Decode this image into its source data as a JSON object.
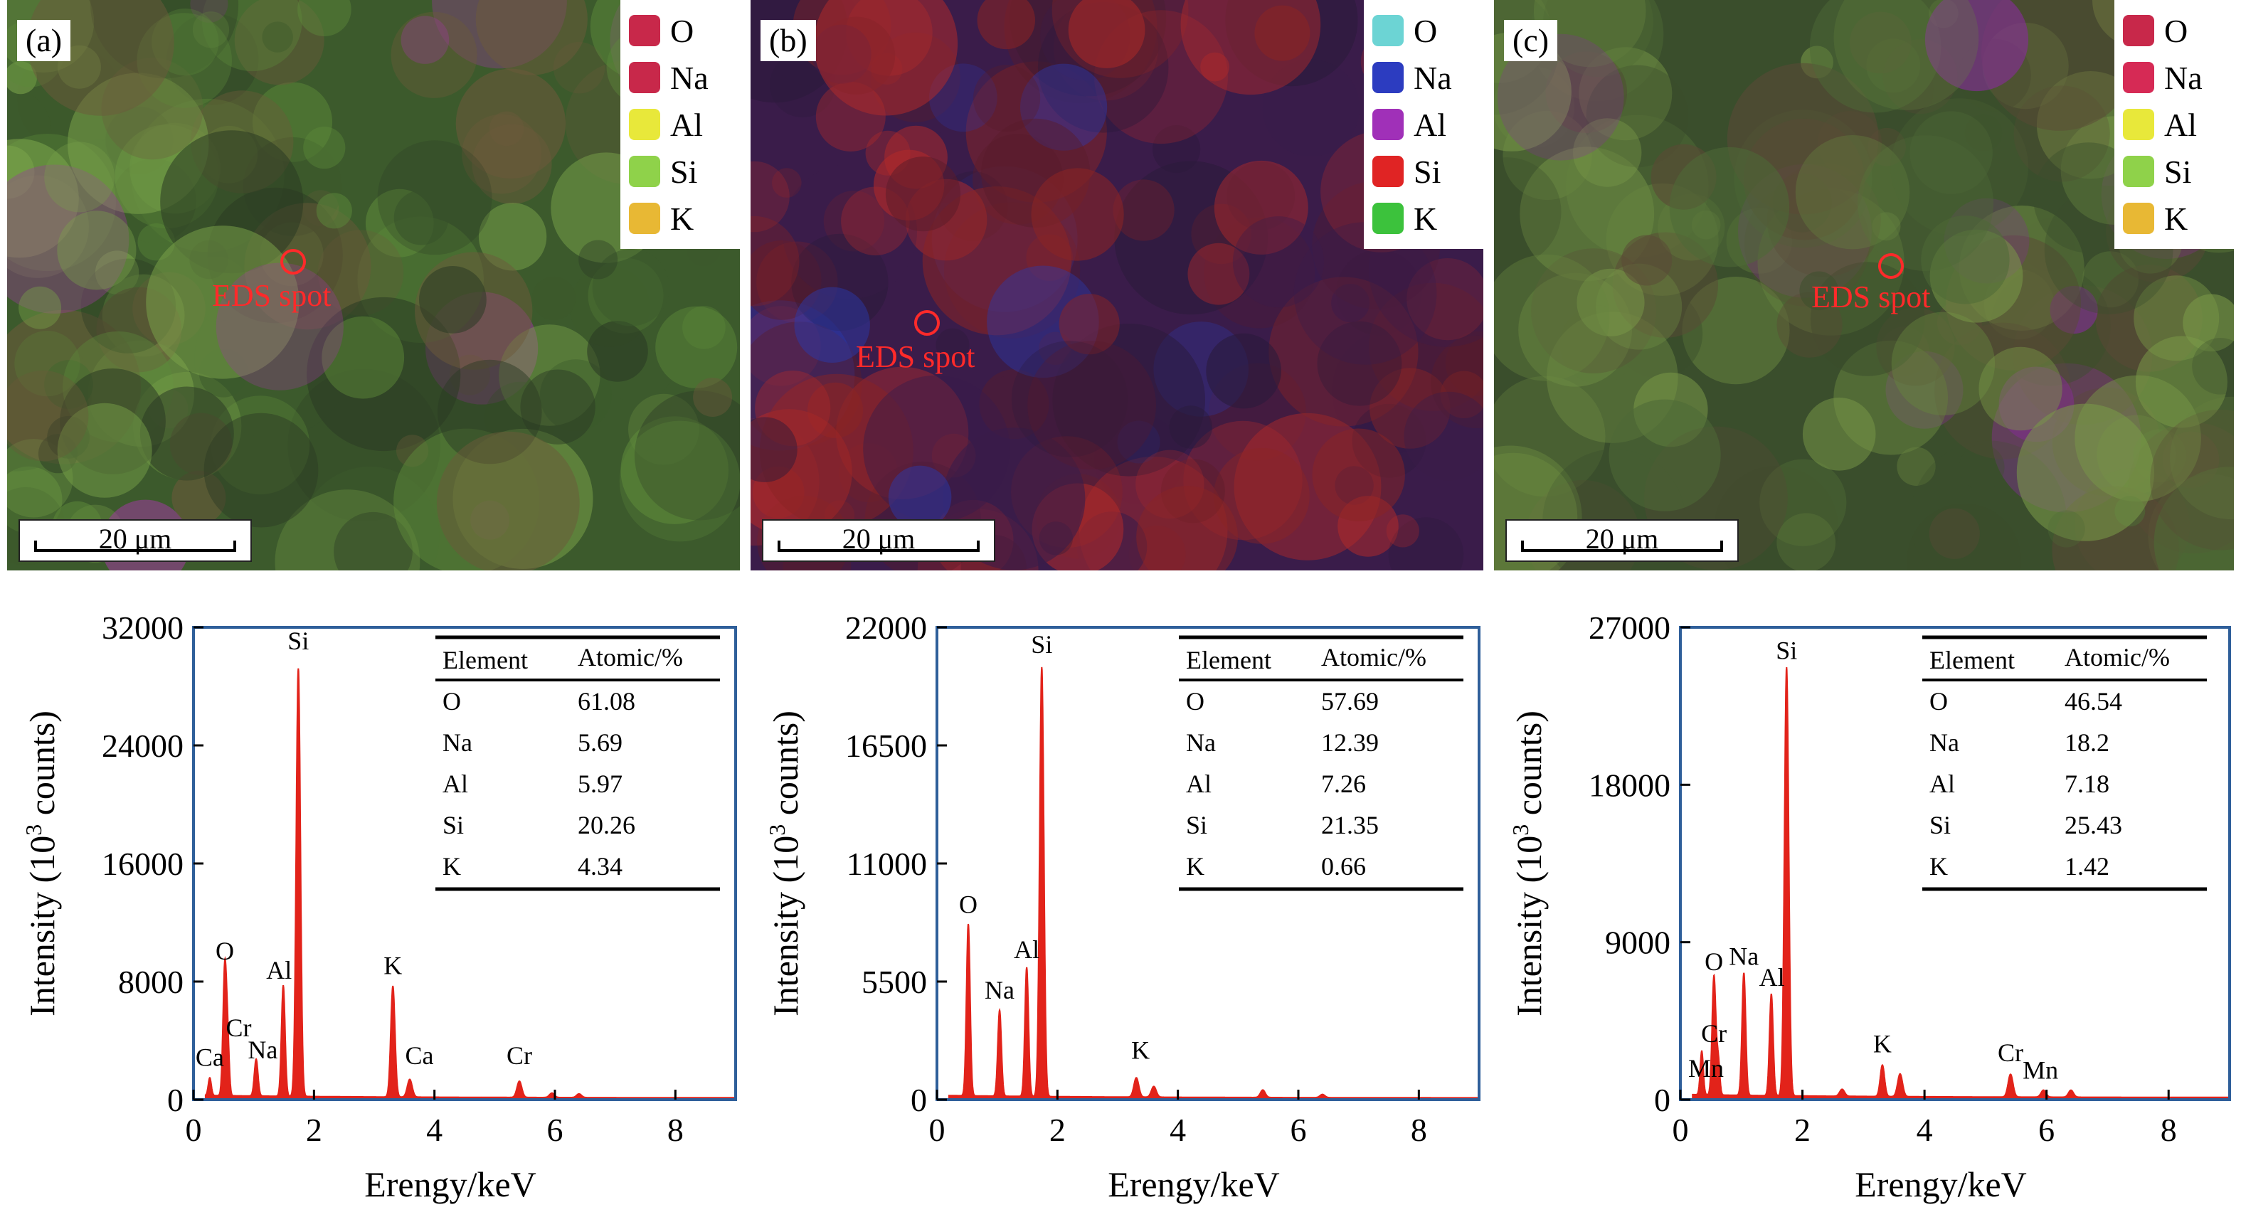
{
  "panels": [
    {
      "label": "(a)",
      "legend": [
        {
          "name": "O",
          "color": "#c8284a"
        },
        {
          "name": "Na",
          "color": "#c8284a"
        },
        {
          "name": "Al",
          "color": "#e8e83a"
        },
        {
          "name": "Si",
          "color": "#8fd24a"
        },
        {
          "name": "K",
          "color": "#e8b834"
        }
      ],
      "spot_label": "EDS spot",
      "scale_label": "20 μm",
      "map_colors": [
        "#5d8a3a",
        "#7aa34a",
        "#3c5a2c",
        "#2b3a24",
        "#6b5a3a",
        "#9b3a9a"
      ]
    },
    {
      "label": "(b)",
      "legend": [
        {
          "name": "O",
          "color": "#6cd4d4"
        },
        {
          "name": "Na",
          "color": "#2c3cc0"
        },
        {
          "name": "Al",
          "color": "#a030b8"
        },
        {
          "name": "Si",
          "color": "#e02424"
        },
        {
          "name": "K",
          "color": "#3cc23c"
        }
      ],
      "spot_label": "EDS spot",
      "scale_label": "20 μm",
      "map_colors": [
        "#5a1c2a",
        "#8a2424",
        "#3a1c4a",
        "#2a1a3a",
        "#b02a2a",
        "#2a3ab0"
      ]
    },
    {
      "label": "(c)",
      "legend": [
        {
          "name": "O",
          "color": "#c8284a"
        },
        {
          "name": "Na",
          "color": "#d62a55"
        },
        {
          "name": "Al",
          "color": "#e8e83a"
        },
        {
          "name": "Si",
          "color": "#8fd24a"
        },
        {
          "name": "K",
          "color": "#e8b834"
        }
      ],
      "spot_label": "EDS spot",
      "scale_label": "20 μm",
      "map_colors": [
        "#4e6a36",
        "#66843f",
        "#3a4e2c",
        "#5a4a36",
        "#7a9a48",
        "#8a2aa0"
      ]
    }
  ],
  "chart_data": [
    {
      "type": "line",
      "title": "",
      "xlabel": "Erengy/keV",
      "ylabel": "Intensity (10",
      "ylabel_sup": "3",
      "ylabel_tail": " counts)",
      "xlim": [
        0,
        9
      ],
      "ylim": [
        0,
        32000
      ],
      "xticks": [
        0,
        2,
        4,
        6,
        8
      ],
      "yticks": [
        0,
        8000,
        16000,
        24000,
        32000
      ],
      "color": "#e2231a",
      "peaks": [
        {
          "x": 0.27,
          "y": 1200,
          "w": 0.025
        },
        {
          "x": 0.52,
          "y": 8800,
          "w": 0.03
        },
        {
          "x": 0.57,
          "y": 3000,
          "w": 0.025
        },
        {
          "x": 1.04,
          "y": 2500,
          "w": 0.03
        },
        {
          "x": 1.49,
          "y": 7500,
          "w": 0.03
        },
        {
          "x": 1.74,
          "y": 29000,
          "w": 0.035
        },
        {
          "x": 3.31,
          "y": 7500,
          "w": 0.035
        },
        {
          "x": 3.59,
          "y": 1200,
          "w": 0.04
        },
        {
          "x": 5.41,
          "y": 1100,
          "w": 0.04
        },
        {
          "x": 5.95,
          "y": 300,
          "w": 0.04
        },
        {
          "x": 6.4,
          "y": 250,
          "w": 0.04
        }
      ],
      "baseline": 300,
      "annotations": [
        {
          "text": "Ca",
          "x": 0.27,
          "y": 2300
        },
        {
          "text": "O",
          "x": 0.52,
          "y": 9500
        },
        {
          "text": "Cr",
          "x": 0.75,
          "y": 4300
        },
        {
          "text": "Na",
          "x": 1.15,
          "y": 2800
        },
        {
          "text": "Al",
          "x": 1.42,
          "y": 8200
        },
        {
          "text": "Si",
          "x": 1.74,
          "y": 30500
        },
        {
          "text": "K",
          "x": 3.31,
          "y": 8500
        },
        {
          "text": "Ca",
          "x": 3.75,
          "y": 2400
        },
        {
          "text": "Cr",
          "x": 5.41,
          "y": 2400
        }
      ],
      "table": {
        "headers": [
          "Element",
          "Atomic/%"
        ],
        "rows": [
          [
            "O",
            "61.08"
          ],
          [
            "Na",
            "5.69"
          ],
          [
            "Al",
            "5.97"
          ],
          [
            "Si",
            "20.26"
          ],
          [
            "K",
            "4.34"
          ]
        ]
      }
    },
    {
      "type": "line",
      "title": "",
      "xlabel": "Erengy/keV",
      "ylabel": "Intensity (10",
      "ylabel_sup": "3",
      "ylabel_tail": " counts)",
      "xlim": [
        0,
        9
      ],
      "ylim": [
        0,
        22000
      ],
      "xticks": [
        0,
        2,
        4,
        6,
        8
      ],
      "yticks": [
        0,
        5500,
        11000,
        16500,
        22000
      ],
      "color": "#e2231a",
      "peaks": [
        {
          "x": 0.52,
          "y": 8000,
          "w": 0.03
        },
        {
          "x": 1.04,
          "y": 4000,
          "w": 0.03
        },
        {
          "x": 1.49,
          "y": 6000,
          "w": 0.03
        },
        {
          "x": 1.74,
          "y": 20000,
          "w": 0.035
        },
        {
          "x": 3.31,
          "y": 900,
          "w": 0.04
        },
        {
          "x": 3.6,
          "y": 500,
          "w": 0.04
        },
        {
          "x": 5.41,
          "y": 350,
          "w": 0.04
        },
        {
          "x": 6.4,
          "y": 150,
          "w": 0.04
        }
      ],
      "baseline": 200,
      "annotations": [
        {
          "text": "O",
          "x": 0.52,
          "y": 8700
        },
        {
          "text": "Na",
          "x": 1.04,
          "y": 4700
        },
        {
          "text": "Al",
          "x": 1.49,
          "y": 6600
        },
        {
          "text": "Si",
          "x": 1.74,
          "y": 20800
        },
        {
          "text": "K",
          "x": 3.38,
          "y": 1900
        }
      ],
      "table": {
        "headers": [
          "Element",
          "Atomic/%"
        ],
        "rows": [
          [
            "O",
            "57.69"
          ],
          [
            "Na",
            "12.39"
          ],
          [
            "Al",
            "7.26"
          ],
          [
            "Si",
            "21.35"
          ],
          [
            "K",
            "0.66"
          ]
        ]
      }
    },
    {
      "type": "line",
      "title": "",
      "xlabel": "Erengy/keV",
      "ylabel": "Intensity (10",
      "ylabel_sup": "3",
      "ylabel_tail": " counts)",
      "xlim": [
        0,
        9
      ],
      "ylim": [
        0,
        27000
      ],
      "xticks": [
        0,
        2,
        4,
        6,
        8
      ],
      "yticks": [
        0,
        9000,
        18000,
        27000
      ],
      "color": "#e2231a",
      "peaks": [
        {
          "x": 0.35,
          "y": 2500,
          "w": 0.025
        },
        {
          "x": 0.55,
          "y": 6800,
          "w": 0.03
        },
        {
          "x": 0.62,
          "y": 2000,
          "w": 0.025
        },
        {
          "x": 1.04,
          "y": 7000,
          "w": 0.03
        },
        {
          "x": 1.49,
          "y": 5800,
          "w": 0.03
        },
        {
          "x": 1.74,
          "y": 24500,
          "w": 0.035
        },
        {
          "x": 2.65,
          "y": 400,
          "w": 0.04
        },
        {
          "x": 3.31,
          "y": 1800,
          "w": 0.035
        },
        {
          "x": 3.6,
          "y": 1300,
          "w": 0.04
        },
        {
          "x": 5.41,
          "y": 1300,
          "w": 0.04
        },
        {
          "x": 5.95,
          "y": 400,
          "w": 0.04
        },
        {
          "x": 6.4,
          "y": 400,
          "w": 0.04
        }
      ],
      "baseline": 300,
      "annotations": [
        {
          "text": "Mn",
          "x": 0.42,
          "y": 1300
        },
        {
          "text": "Cr",
          "x": 0.55,
          "y": 3300
        },
        {
          "text": "O",
          "x": 0.55,
          "y": 7400
        },
        {
          "text": "Na",
          "x": 1.04,
          "y": 7700
        },
        {
          "text": "Al",
          "x": 1.5,
          "y": 6500
        },
        {
          "text": "Si",
          "x": 1.74,
          "y": 25200
        },
        {
          "text": "K",
          "x": 3.31,
          "y": 2700
        },
        {
          "text": "Cr",
          "x": 5.41,
          "y": 2200
        },
        {
          "text": "Mn",
          "x": 5.9,
          "y": 1200
        }
      ],
      "table": {
        "headers": [
          "Element",
          "Atomic/%"
        ],
        "rows": [
          [
            "O",
            "46.54"
          ],
          [
            "Na",
            "18.2"
          ],
          [
            "Al",
            "7.18"
          ],
          [
            "Si",
            "25.43"
          ],
          [
            "K",
            "1.42"
          ]
        ]
      }
    }
  ]
}
